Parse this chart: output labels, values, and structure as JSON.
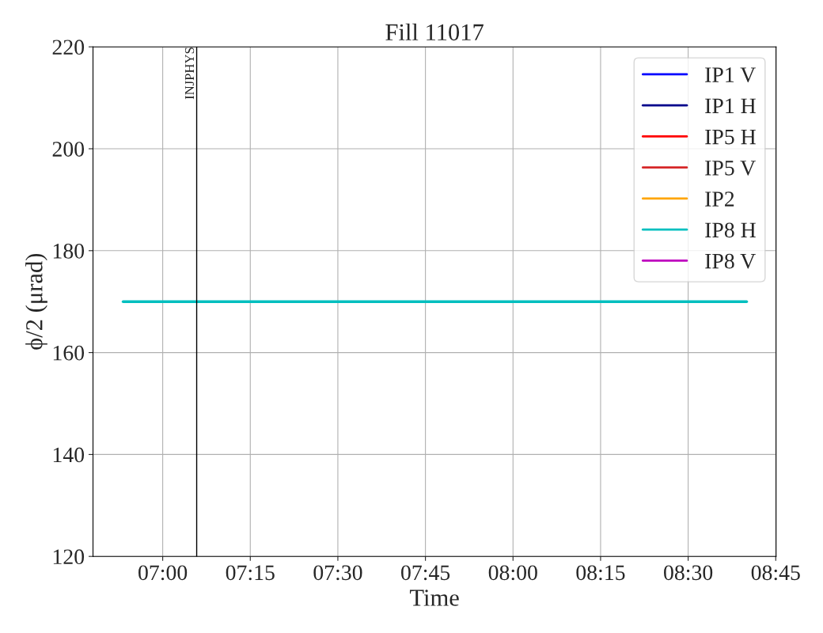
{
  "chart_data": {
    "type": "line",
    "title": "Fill 11017",
    "xlabel": "Time",
    "ylabel": "ϕ/2 (μrad)",
    "x": [
      6.887,
      8.667
    ],
    "series": [
      {
        "name": "IP1 V",
        "color": "#0000ff",
        "values": [
          null,
          null
        ]
      },
      {
        "name": "IP1 H",
        "color": "#00008b",
        "values": [
          null,
          null
        ]
      },
      {
        "name": "IP5 H",
        "color": "#ff0000",
        "values": [
          null,
          null
        ]
      },
      {
        "name": "IP5 V",
        "color": "#d62728",
        "values": [
          null,
          null
        ]
      },
      {
        "name": "IP2",
        "color": "#ffa500",
        "values": [
          null,
          null
        ]
      },
      {
        "name": "IP8 H",
        "color": "#00bfbf",
        "values": [
          170,
          170
        ]
      },
      {
        "name": "IP8 V",
        "color": "#bf00bf",
        "values": [
          null,
          null
        ]
      }
    ],
    "xlim": [
      6.801,
      8.751
    ],
    "xticks": [
      {
        "value": 7,
        "label": "07:00"
      },
      {
        "value": 7.25,
        "label": "07:15"
      },
      {
        "value": 7.5,
        "label": "07:30"
      },
      {
        "value": 7.75,
        "label": "07:45"
      },
      {
        "value": 8,
        "label": "08:00"
      },
      {
        "value": 8.25,
        "label": "08:15"
      },
      {
        "value": 8.5,
        "label": "08:30"
      },
      {
        "value": 8.75,
        "label": "08:45"
      }
    ],
    "ylim": [
      120,
      220
    ],
    "yticks": [
      120,
      140,
      160,
      180,
      200,
      220
    ],
    "ref_lines": [
      {
        "axis": "x",
        "value": 7.097,
        "label": "INJPHYS",
        "color": "#000000"
      }
    ],
    "grid": true,
    "legend": "top right",
    "line_style": "solid",
    "marker": "none"
  }
}
